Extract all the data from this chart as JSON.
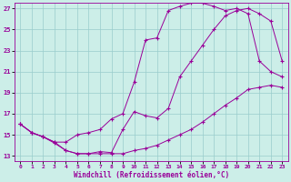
{
  "xlabel": "Windchill (Refroidissement éolien,°C)",
  "bg_color": "#cceee8",
  "line_color": "#990099",
  "grid_color": "#99cccc",
  "xlim": [
    -0.5,
    23.5
  ],
  "ylim": [
    12.5,
    27.5
  ],
  "xticks": [
    0,
    1,
    2,
    3,
    4,
    5,
    6,
    7,
    8,
    9,
    10,
    11,
    12,
    13,
    14,
    15,
    16,
    17,
    18,
    19,
    20,
    21,
    22,
    23
  ],
  "yticks": [
    13,
    15,
    17,
    19,
    21,
    23,
    25,
    27
  ],
  "line1_x": [
    0,
    1,
    2,
    3,
    4,
    5,
    6,
    7,
    8,
    9,
    10,
    11,
    12,
    13,
    14,
    15,
    16,
    17,
    18,
    19,
    20,
    21,
    22,
    23
  ],
  "line1_y": [
    16.0,
    15.2,
    14.8,
    14.2,
    13.5,
    13.2,
    13.2,
    13.2,
    13.2,
    13.2,
    13.5,
    13.7,
    14.0,
    14.5,
    15.0,
    15.5,
    16.2,
    17.0,
    17.8,
    18.5,
    19.3,
    19.5,
    19.7,
    19.5
  ],
  "line2_x": [
    0,
    1,
    2,
    3,
    4,
    5,
    6,
    7,
    8,
    9,
    10,
    11,
    12,
    13,
    14,
    15,
    16,
    17,
    18,
    19,
    20,
    21,
    22,
    23
  ],
  "line2_y": [
    16.0,
    15.2,
    14.8,
    14.3,
    14.3,
    15.0,
    15.2,
    15.5,
    16.5,
    17.0,
    20.0,
    24.0,
    24.2,
    26.8,
    27.2,
    27.5,
    27.5,
    27.2,
    26.8,
    27.0,
    26.5,
    22.0,
    21.0,
    20.5
  ],
  "line3_x": [
    0,
    1,
    2,
    3,
    4,
    5,
    6,
    7,
    8,
    9,
    10,
    11,
    12,
    13,
    14,
    15,
    16,
    17,
    18,
    19,
    20,
    21,
    22,
    23
  ],
  "line3_y": [
    16.0,
    15.2,
    14.8,
    14.3,
    13.5,
    13.2,
    13.2,
    13.4,
    13.3,
    15.5,
    17.2,
    16.8,
    16.6,
    17.5,
    20.5,
    22.0,
    23.5,
    25.0,
    26.3,
    26.8,
    27.0,
    26.5,
    25.8,
    22.0
  ]
}
